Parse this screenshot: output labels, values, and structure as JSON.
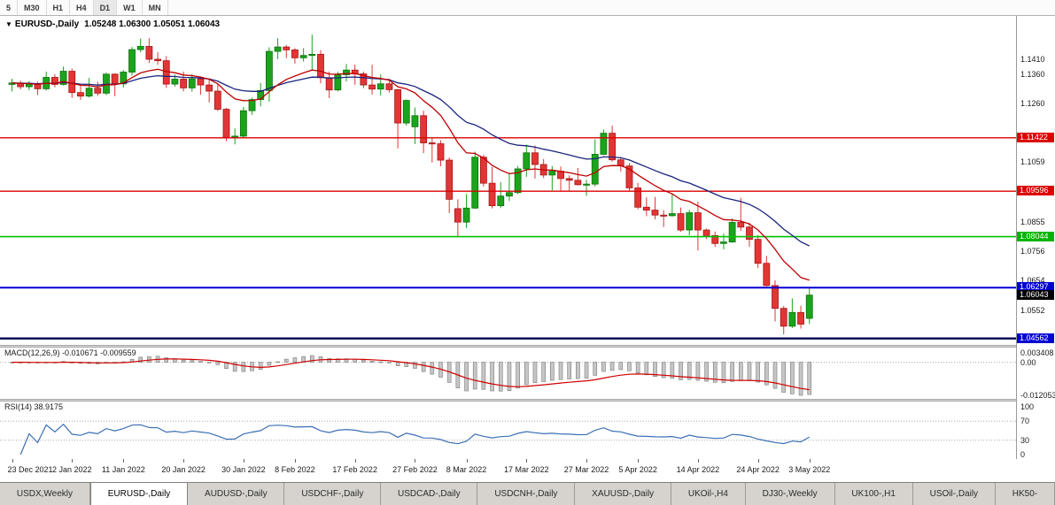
{
  "icons": {
    "chart_dropdown": "▼"
  },
  "toolbar": {
    "timeframes": [
      "5",
      "M30",
      "H1",
      "H4",
      "D1",
      "W1",
      "MN"
    ],
    "active": "D1"
  },
  "chart": {
    "title": "EURUSD-,Daily",
    "ohlc_text": "1.05248 1.06300 1.05051 1.06043"
  },
  "colors": {
    "bull": "#1ca31c",
    "bull_border": "#0c720c",
    "bear": "#e23636",
    "bear_border": "#a81414",
    "ema_fast": "#c00000",
    "ema_slow": "#1a237e",
    "level_red": "#dd0000",
    "level_green": "#00c300",
    "level_blue": "#0000d2",
    "level_navy": "#000050",
    "macd_bar": "#c6c6c6",
    "macd_bar_border": "#7a7a7a",
    "macd_signal": "#d00000",
    "rsi_line": "#3b6fb5",
    "grid_dotted": "#a8a8a8",
    "current_badge": "#000000"
  },
  "chart_data": {
    "type": "candlestick",
    "symbol": "EURUSD-,Daily",
    "ohlc_display": {
      "open": "1.05248",
      "high": "1.06300",
      "low": "1.05051",
      "close": "1.06043"
    },
    "candles": [
      [
        1.1325,
        1.1344,
        1.1301,
        1.133
      ],
      [
        1.133,
        1.1338,
        1.1308,
        1.1317
      ],
      [
        1.1317,
        1.1336,
        1.1305,
        1.1327
      ],
      [
        1.1327,
        1.1334,
        1.1288,
        1.131
      ],
      [
        1.131,
        1.1369,
        1.1304,
        1.1349
      ],
      [
        1.1349,
        1.136,
        1.1315,
        1.1325
      ],
      [
        1.1325,
        1.1386,
        1.1321,
        1.137
      ],
      [
        1.137,
        1.1379,
        1.1279,
        1.1297
      ],
      [
        1.1297,
        1.1323,
        1.1272,
        1.1285
      ],
      [
        1.1285,
        1.1347,
        1.128,
        1.1312
      ],
      [
        1.1312,
        1.1334,
        1.1285,
        1.1295
      ],
      [
        1.1295,
        1.1365,
        1.1288,
        1.136
      ],
      [
        1.136,
        1.1363,
        1.1285,
        1.1327
      ],
      [
        1.1327,
        1.1374,
        1.1314,
        1.1367
      ],
      [
        1.1367,
        1.1453,
        1.1355,
        1.1444
      ],
      [
        1.1444,
        1.1482,
        1.1435,
        1.1455
      ],
      [
        1.1455,
        1.1483,
        1.1398,
        1.1411
      ],
      [
        1.1411,
        1.1435,
        1.1392,
        1.1406
      ],
      [
        1.1406,
        1.1422,
        1.1313,
        1.1326
      ],
      [
        1.1326,
        1.1359,
        1.1317,
        1.1343
      ],
      [
        1.1343,
        1.1369,
        1.1301,
        1.1313
      ],
      [
        1.1313,
        1.136,
        1.13,
        1.1344
      ],
      [
        1.1344,
        1.1349,
        1.129,
        1.1323
      ],
      [
        1.1323,
        1.1344,
        1.1263,
        1.1302
      ],
      [
        1.1302,
        1.1325,
        1.1234,
        1.124
      ],
      [
        1.124,
        1.1245,
        1.1131,
        1.1144
      ],
      [
        1.1144,
        1.1174,
        1.112,
        1.1148
      ],
      [
        1.1148,
        1.1248,
        1.1141,
        1.1235
      ],
      [
        1.1235,
        1.128,
        1.1221,
        1.1273
      ],
      [
        1.1273,
        1.133,
        1.125,
        1.1304
      ],
      [
        1.1304,
        1.1452,
        1.1266,
        1.1438
      ],
      [
        1.1438,
        1.1483,
        1.1411,
        1.1453
      ],
      [
        1.1453,
        1.146,
        1.1415,
        1.1443
      ],
      [
        1.1443,
        1.1449,
        1.1396,
        1.1416
      ],
      [
        1.1416,
        1.1449,
        1.1403,
        1.1424
      ],
      [
        1.1424,
        1.1495,
        1.1375,
        1.1428
      ],
      [
        1.1428,
        1.1442,
        1.1329,
        1.1348
      ],
      [
        1.1348,
        1.1369,
        1.1278,
        1.1306
      ],
      [
        1.1306,
        1.1368,
        1.1301,
        1.1358
      ],
      [
        1.1358,
        1.1395,
        1.1335,
        1.1374
      ],
      [
        1.1374,
        1.1393,
        1.1324,
        1.1361
      ],
      [
        1.1361,
        1.1369,
        1.1312,
        1.1323
      ],
      [
        1.1323,
        1.1392,
        1.129,
        1.1309
      ],
      [
        1.1309,
        1.1359,
        1.1287,
        1.1327
      ],
      [
        1.1327,
        1.1344,
        1.1297,
        1.1307
      ],
      [
        1.1307,
        1.131,
        1.1106,
        1.1193
      ],
      [
        1.1193,
        1.1274,
        1.1184,
        1.127
      ],
      [
        1.118,
        1.1246,
        1.1121,
        1.1218
      ],
      [
        1.1218,
        1.1235,
        1.109,
        1.1125
      ],
      [
        1.1125,
        1.1145,
        1.1058,
        1.1122
      ],
      [
        1.1122,
        1.1134,
        1.1045,
        1.1066
      ],
      [
        1.1066,
        1.1075,
        1.0885,
        1.0932
      ],
      [
        1.09,
        1.0932,
        1.0806,
        1.0854
      ],
      [
        1.0854,
        1.095,
        1.0834,
        1.0902
      ],
      [
        1.0902,
        1.1095,
        1.0899,
        1.1076
      ],
      [
        1.1076,
        1.1084,
        1.0976,
        1.0987
      ],
      [
        1.0987,
        1.1043,
        1.0901,
        1.091
      ],
      [
        1.091,
        1.0991,
        1.0902,
        1.0943
      ],
      [
        1.0943,
        1.1019,
        1.0926,
        1.0955
      ],
      [
        1.0955,
        1.1046,
        1.095,
        1.1036
      ],
      [
        1.1036,
        1.1119,
        1.1009,
        1.1091
      ],
      [
        1.1091,
        1.1116,
        1.1003,
        1.1051
      ],
      [
        1.1051,
        1.107,
        1.1005,
        1.1015
      ],
      [
        1.1015,
        1.1046,
        1.0963,
        1.1028
      ],
      [
        1.1028,
        1.1044,
        1.0962,
        1.1003
      ],
      [
        1.1003,
        1.1014,
        1.096,
        1.0997
      ],
      [
        1.0997,
        1.1039,
        1.0979,
        1.0982
      ],
      [
        1.0982,
        1.0999,
        1.0944,
        1.0984
      ],
      [
        1.0984,
        1.1137,
        1.0976,
        1.1086
      ],
      [
        1.1086,
        1.1171,
        1.1083,
        1.1158
      ],
      [
        1.1158,
        1.1184,
        1.1061,
        1.1067
      ],
      [
        1.1067,
        1.1077,
        1.1027,
        1.1046
      ],
      [
        1.1046,
        1.1056,
        1.0961,
        1.0971
      ],
      [
        1.0971,
        1.0988,
        1.0898,
        1.0905
      ],
      [
        1.0905,
        1.0939,
        1.0874,
        1.0895
      ],
      [
        1.0895,
        1.094,
        1.0863,
        1.0878
      ],
      [
        1.0878,
        1.0895,
        1.0837,
        1.0876
      ],
      [
        1.0876,
        1.0951,
        1.0872,
        1.0883
      ],
      [
        1.0883,
        1.0904,
        1.0821,
        1.0827
      ],
      [
        1.0827,
        1.0896,
        1.0809,
        1.0886
      ],
      [
        1.0886,
        1.0924,
        1.0757,
        1.0827
      ],
      [
        1.0827,
        1.0832,
        1.0796,
        1.0808
      ],
      [
        1.0808,
        1.0822,
        1.0769,
        1.0781
      ],
      [
        1.0781,
        1.0815,
        1.0761,
        1.0786
      ],
      [
        1.0786,
        1.0867,
        1.0783,
        1.0853
      ],
      [
        1.0853,
        1.0937,
        1.0824,
        1.0837
      ],
      [
        1.0837,
        1.0852,
        1.077,
        1.0795
      ],
      [
        1.0795,
        1.081,
        1.0697,
        1.0713
      ],
      [
        1.0713,
        1.0739,
        1.0634,
        1.0637
      ],
      [
        1.0637,
        1.0655,
        1.0514,
        1.0559
      ],
      [
        1.0559,
        1.0567,
        1.047,
        1.0498
      ],
      [
        1.0498,
        1.0593,
        1.0492,
        1.0545
      ],
      [
        1.0545,
        1.0568,
        1.049,
        1.0505
      ],
      [
        1.05248,
        1.063,
        1.05051,
        1.06043
      ]
    ],
    "overlays": [
      {
        "name": "ma-fast",
        "period": 12,
        "color_key": "ema_fast"
      },
      {
        "name": "ma-slow",
        "period": 26,
        "color_key": "ema_slow"
      }
    ],
    "levels": [
      {
        "text": "1.11422",
        "value": 1.11422,
        "line_color": "#dd0000",
        "badge_color": "#dd0000",
        "line_width": 1.4
      },
      {
        "text": "1.09596",
        "value": 1.09596,
        "line_color": "#dd0000",
        "badge_color": "#dd0000",
        "line_width": 1.4
      },
      {
        "text": "1.08044",
        "value": 1.08044,
        "line_color": "#00c300",
        "badge_color": "#00b400",
        "line_width": 1.6
      },
      {
        "text": "1.06297",
        "value": 1.06297,
        "line_color": "#0000d2",
        "badge_color": "#0000d2",
        "line_width": 2
      },
      {
        "text": "1.04562",
        "value": 1.04562,
        "line_color": "#000050",
        "badge_color": "#0000d2",
        "line_width": 2.4
      }
    ],
    "current_price": {
      "text": "1.06043",
      "value": 1.06043
    },
    "price_axis_labels": [
      {
        "text": "1.1410",
        "value": 1.141
      },
      {
        "text": "1.1360",
        "value": 1.136
      },
      {
        "text": "1.1260",
        "value": 1.126
      },
      {
        "text": "1.1059",
        "value": 1.1059
      },
      {
        "text": "1.0855",
        "value": 1.0855
      },
      {
        "text": "1.0756",
        "value": 1.0756
      },
      {
        "text": "1.0654",
        "value": 1.0654
      },
      {
        "text": "1.0552",
        "value": 1.0552
      }
    ],
    "time_axis_labels": [
      {
        "text": "23 Dec 2021",
        "index": 0
      },
      {
        "text": "2 Jan 2022",
        "index": 7
      },
      {
        "text": "11 Jan 2022",
        "index": 13
      },
      {
        "text": "20 Jan 2022",
        "index": 20
      },
      {
        "text": "30 Jan 2022",
        "index": 27
      },
      {
        "text": "8 Feb 2022",
        "index": 33
      },
      {
        "text": "17 Feb 2022",
        "index": 40
      },
      {
        "text": "27 Feb 2022",
        "index": 47
      },
      {
        "text": "8 Mar 2022",
        "index": 53
      },
      {
        "text": "17 Mar 2022",
        "index": 60
      },
      {
        "text": "27 Mar 2022",
        "index": 67
      },
      {
        "text": "5 Apr 2022",
        "index": 73
      },
      {
        "text": "14 Apr 2022",
        "index": 80
      },
      {
        "text": "24 Apr 2022",
        "index": 87
      },
      {
        "text": "3 May 2022",
        "index": 93
      }
    ],
    "macd": {
      "label": "MACD(12,26,9)",
      "value_text": "-0.010671 -0.009559",
      "params": [
        12,
        26,
        9
      ],
      "scale_labels": [
        {
          "text": "0.003408",
          "value": 0.003408
        },
        {
          "text": "0.00",
          "value": 0
        },
        {
          "text": "-0.012053",
          "value": -0.012053
        }
      ]
    },
    "rsi": {
      "label": "RSI(14)",
      "value_text": "38.9175",
      "period": 14,
      "levels": [
        70,
        30
      ],
      "scale_labels": [
        {
          "text": "100",
          "value": 100
        },
        {
          "text": "70",
          "value": 70
        },
        {
          "text": "30",
          "value": 30
        },
        {
          "text": "0",
          "value": 0
        }
      ]
    }
  },
  "tabs": {
    "items": [
      {
        "label": "USDX,Weekly",
        "active": false
      },
      {
        "label": "EURUSD-,Daily",
        "active": true
      },
      {
        "label": "AUDUSD-,Daily",
        "active": false
      },
      {
        "label": "USDCHF-,Daily",
        "active": false
      },
      {
        "label": "USDCAD-,Daily",
        "active": false
      },
      {
        "label": "USDCNH-,Daily",
        "active": false
      },
      {
        "label": "XAUUSD-,Daily",
        "active": false
      },
      {
        "label": "UKOil-,H4",
        "active": false
      },
      {
        "label": "DJ30-,Weekly",
        "active": false
      },
      {
        "label": "UK100-,H1",
        "active": false
      },
      {
        "label": "USOil-,Daily",
        "active": false
      },
      {
        "label": "HK50-",
        "active": false
      }
    ]
  }
}
